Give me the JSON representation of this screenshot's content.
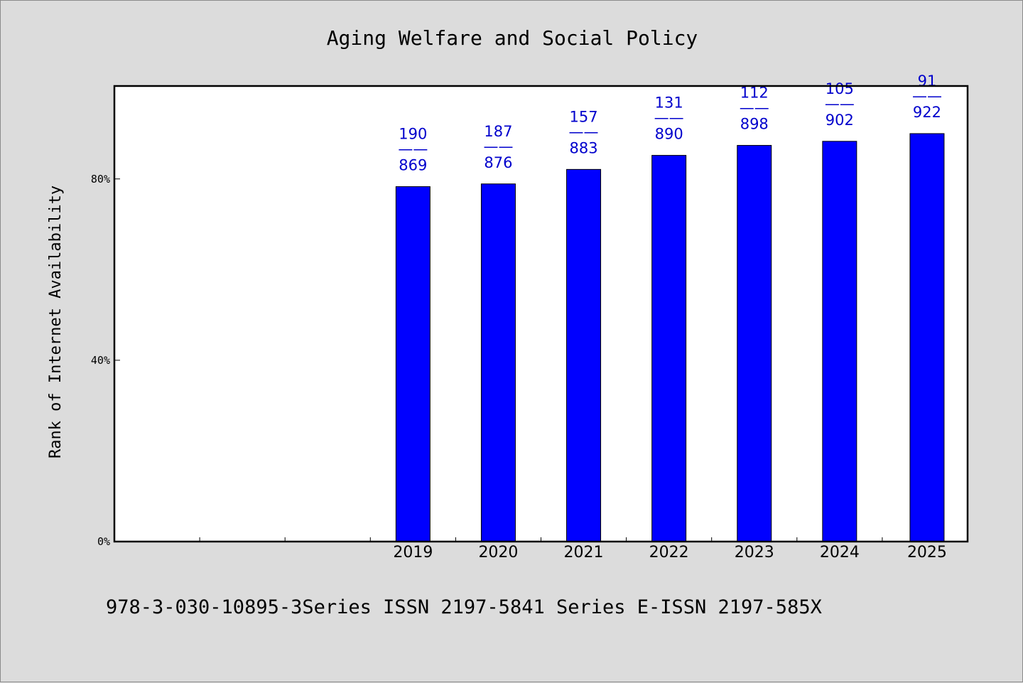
{
  "chart_data": {
    "type": "bar",
    "title": "Aging Welfare and Social Policy",
    "ylabel": "Rank of Internet Availability",
    "xlabel": "",
    "categories": [
      "",
      "",
      "",
      "2019",
      "2020",
      "2021",
      "2022",
      "2023",
      "2024",
      "2025"
    ],
    "values": [
      null,
      null,
      null,
      0.783,
      0.789,
      0.821,
      0.852,
      0.874,
      0.883,
      0.9
    ],
    "data_labels": [
      {
        "top": "",
        "sep": "",
        "bottom": ""
      },
      {
        "top": "",
        "sep": "",
        "bottom": ""
      },
      {
        "top": "",
        "sep": "",
        "bottom": ""
      },
      {
        "top": "190",
        "sep": "——",
        "bottom": "869"
      },
      {
        "top": "187",
        "sep": "——",
        "bottom": "876"
      },
      {
        "top": "157",
        "sep": "——",
        "bottom": "883"
      },
      {
        "top": "131",
        "sep": "——",
        "bottom": "890"
      },
      {
        "top": "112",
        "sep": "——",
        "bottom": "898"
      },
      {
        "top": "105",
        "sep": "——",
        "bottom": "902"
      },
      {
        "top": "91",
        "sep": "——",
        "bottom": "922"
      }
    ],
    "y_ticks": [
      {
        "value": 0,
        "label": "0%"
      },
      {
        "value": 0.4,
        "label": "40%"
      },
      {
        "value": 0.8,
        "label": "80%"
      }
    ],
    "ylim": [
      0,
      1.005
    ],
    "bar_color": "#0000ff",
    "label_color": "#0000cc",
    "grid": false,
    "legend": "none"
  },
  "footer": {
    "text": "978-3-030-10895-3Series ISSN 2197-5841 Series E-ISSN 2197-585X"
  }
}
